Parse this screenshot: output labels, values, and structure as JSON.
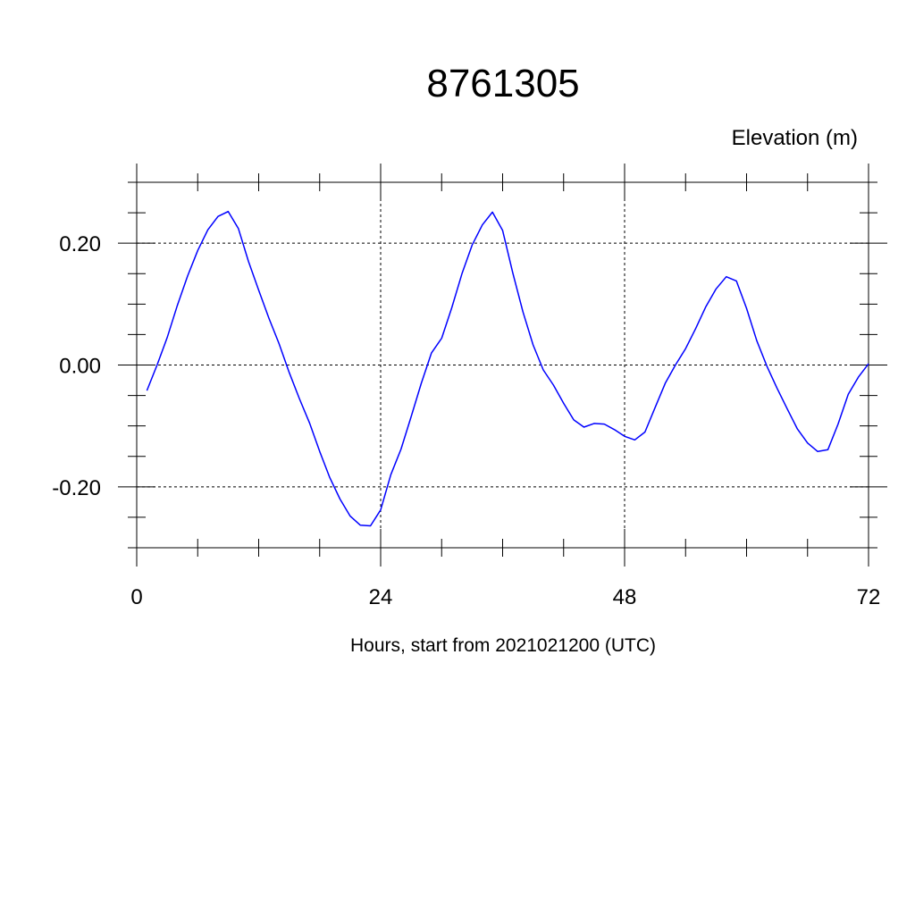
{
  "chart_data": {
    "type": "line",
    "title": "8761305",
    "ylabel": "Elevation (m)",
    "xlabel": "Hours, start from 2021021200 (UTC)",
    "xlim": [
      0,
      72
    ],
    "ylim": [
      -0.3,
      0.3
    ],
    "xticks": [
      0,
      24,
      48,
      72
    ],
    "xtick_labels": [
      "0",
      "24",
      "48",
      "72"
    ],
    "yticks": [
      0.2,
      0.0,
      -0.2
    ],
    "ytick_labels": [
      "0.20",
      "0.00",
      "-0.20"
    ],
    "grid": true,
    "line_color": "#0000ff",
    "series": [
      {
        "x": [
          1,
          2,
          3,
          4,
          5,
          6,
          7,
          8,
          9,
          10,
          11,
          12,
          13,
          14,
          15,
          16,
          17,
          18,
          19,
          20,
          21,
          22,
          23,
          24,
          25,
          26,
          27,
          28,
          29,
          30,
          31,
          32,
          33,
          34,
          35,
          36,
          37,
          38,
          39,
          40,
          41,
          42,
          43,
          44,
          45,
          46,
          47,
          48,
          49,
          50,
          51,
          52,
          53,
          54,
          55,
          56,
          57,
          58,
          59,
          60,
          61,
          62,
          63,
          64,
          65,
          66,
          67,
          68,
          69,
          70,
          71,
          72
        ],
        "values": [
          -0.042,
          0.0,
          0.045,
          0.098,
          0.146,
          0.188,
          0.222,
          0.244,
          0.252,
          0.224,
          0.17,
          0.123,
          0.077,
          0.035,
          -0.012,
          -0.055,
          -0.095,
          -0.142,
          -0.185,
          -0.22,
          -0.248,
          -0.263,
          -0.264,
          -0.238,
          -0.18,
          -0.138,
          -0.085,
          -0.03,
          0.02,
          0.044,
          0.094,
          0.15,
          0.197,
          0.23,
          0.251,
          0.221,
          0.151,
          0.087,
          0.033,
          -0.008,
          -0.033,
          -0.063,
          -0.09,
          -0.102,
          -0.096,
          -0.097,
          -0.106,
          -0.117,
          -0.123,
          -0.11,
          -0.07,
          -0.03,
          0.0,
          0.027,
          0.06,
          0.096,
          0.125,
          0.145,
          0.138,
          0.093,
          0.04,
          -0.002,
          -0.038,
          -0.072,
          -0.105,
          -0.128,
          -0.142,
          -0.139,
          -0.097,
          -0.048,
          -0.02,
          0.002
        ]
      }
    ]
  }
}
